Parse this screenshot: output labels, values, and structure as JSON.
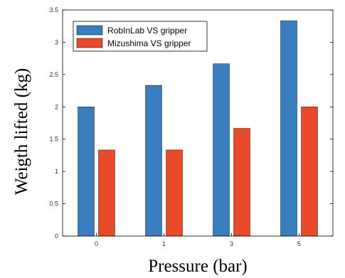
{
  "chart_data": {
    "type": "bar",
    "categories": [
      "0",
      "1",
      "3",
      "5"
    ],
    "series": [
      {
        "name": "RobInLab VS gripper",
        "values": [
          2.0,
          2.333,
          2.667,
          3.333
        ],
        "color": "#3a7ebf"
      },
      {
        "name": "Mizushima VS gripper",
        "values": [
          1.333,
          1.333,
          1.667,
          2.0
        ],
        "color": "#e84a2a"
      }
    ],
    "xlabel": "Pressure (bar)",
    "ylabel": "Weigth lifted (kg)",
    "ylim": [
      0,
      3.5
    ],
    "yticks": [
      "0",
      "0.5",
      "1",
      "1.5",
      "2",
      "2.5",
      "3",
      "3.5"
    ],
    "grid": false,
    "legend_position": "top-left"
  }
}
